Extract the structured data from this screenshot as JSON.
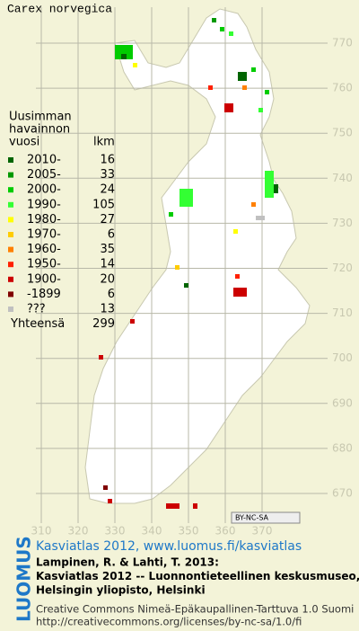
{
  "title": "Carex norvegica",
  "legend": {
    "header": [
      "Uusimman",
      "havainnon",
      "vuosi"
    ],
    "count_header": "lkm",
    "rows": [
      {
        "label": "2010-",
        "count": 16,
        "color": "#006400"
      },
      {
        "label": "2005-",
        "count": 33,
        "color": "#009900"
      },
      {
        "label": "2000-",
        "count": 24,
        "color": "#00cc00"
      },
      {
        "label": "1990-",
        "count": 105,
        "color": "#33ff33"
      },
      {
        "label": "1980-",
        "count": 27,
        "color": "#ffff00"
      },
      {
        "label": "1970-",
        "count": 6,
        "color": "#ffcc00"
      },
      {
        "label": "1960-",
        "count": 35,
        "color": "#ff8000"
      },
      {
        "label": "1950-",
        "count": 14,
        "color": "#ff2000"
      },
      {
        "label": "1900-",
        "count": 20,
        "color": "#cc0000"
      },
      {
        "label": "-1899",
        "count": 6,
        "color": "#800000"
      },
      {
        "label": "???",
        "count": 13,
        "color": "#c0c0c0"
      }
    ],
    "total_label": "Yhteensä",
    "total": 299
  },
  "grid": {
    "x_labels": [
      310,
      320,
      330,
      340,
      350,
      360,
      370
    ],
    "y_labels": [
      770,
      760,
      750,
      740,
      730,
      720,
      710,
      700,
      690,
      680,
      670
    ]
  },
  "license_badge": "BY-NC-SA",
  "footer": {
    "link": "Kasviatlas 2012, www.luomus.fi/kasviatlas",
    "citation": [
      "Lampinen, R. & Lahti, T. 2013:",
      "Kasviatlas 2012 -- Luonnontieteellinen keskusmuseo,",
      "Helsingin yliopisto, Helsinki"
    ],
    "license": [
      "Creative Commons Nimeä-Epäkaupallinen-Tarttuva 1.0 Suomi",
      "http://creativecommons.org/licenses/by-nc-sa/1.0/fi"
    ],
    "logo": "LUOMUS"
  }
}
